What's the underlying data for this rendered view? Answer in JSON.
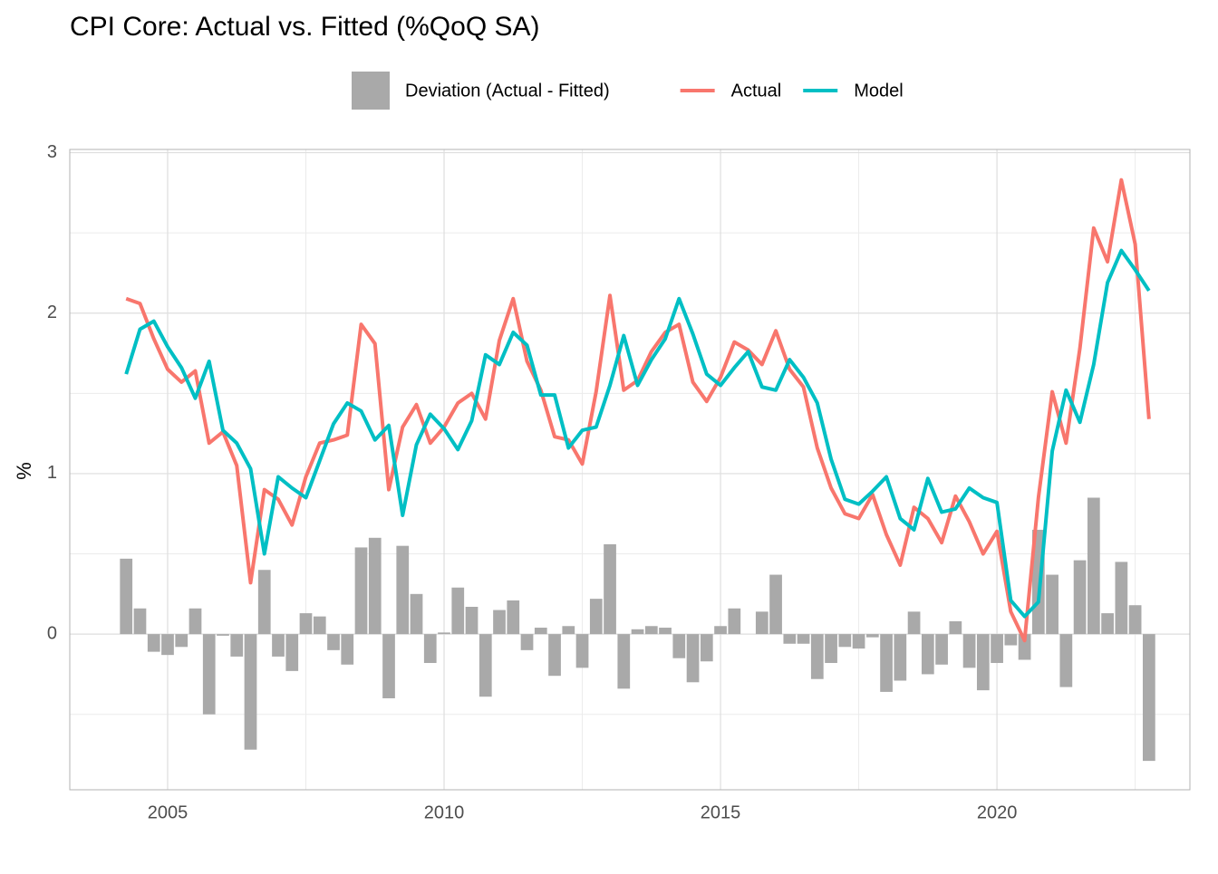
{
  "chart_data": {
    "type": "combo",
    "title": "CPI Core: Actual vs. Fitted (%QoQ SA)",
    "y_label": "%",
    "x": [
      2004.25,
      2004.5,
      2004.75,
      2005,
      2005.25,
      2005.5,
      2005.75,
      2006,
      2006.25,
      2006.5,
      2006.75,
      2007,
      2007.25,
      2007.5,
      2007.75,
      2008,
      2008.25,
      2008.5,
      2008.75,
      2009,
      2009.25,
      2009.5,
      2009.75,
      2010,
      2010.25,
      2010.5,
      2010.75,
      2011,
      2011.25,
      2011.5,
      2011.75,
      2012,
      2012.25,
      2012.5,
      2012.75,
      2013,
      2013.25,
      2013.5,
      2013.75,
      2014,
      2014.25,
      2014.5,
      2014.75,
      2015,
      2015.25,
      2015.5,
      2015.75,
      2016,
      2016.25,
      2016.5,
      2016.75,
      2017,
      2017.25,
      2017.5,
      2017.75,
      2018,
      2018.25,
      2018.5,
      2018.75,
      2019,
      2019.25,
      2019.5,
      2019.75,
      2020,
      2020.25,
      2020.5,
      2020.75,
      2021,
      2021.25,
      2021.5,
      2021.75,
      2022,
      2022.25,
      2022.5,
      2022.75
    ],
    "series": [
      {
        "name": "Deviation (Actual - Fitted)",
        "type": "bar",
        "color": "#a9a9a9",
        "values": [
          0.47,
          0.16,
          -0.11,
          -0.13,
          -0.08,
          0.16,
          -0.5,
          -0.01,
          -0.14,
          -0.72,
          0.4,
          -0.14,
          -0.23,
          0.13,
          0.11,
          -0.1,
          -0.19,
          0.54,
          0.6,
          -0.4,
          0.55,
          0.25,
          -0.18,
          0.01,
          0.29,
          0.17,
          -0.39,
          0.15,
          0.21,
          -0.1,
          0.04,
          -0.26,
          0.05,
          -0.21,
          0.22,
          0.56,
          -0.34,
          0.03,
          0.05,
          0.04,
          -0.15,
          -0.3,
          -0.17,
          0.05,
          0.16,
          0.0,
          0.14,
          0.37,
          -0.06,
          -0.06,
          -0.28,
          -0.18,
          -0.08,
          -0.09,
          -0.02,
          -0.36,
          -0.29,
          0.14,
          -0.25,
          -0.19,
          0.08,
          -0.21,
          -0.35,
          -0.18,
          -0.07,
          -0.16,
          0.65,
          0.37,
          -0.33,
          0.46,
          0.85,
          0.13,
          0.45,
          0.18,
          -0.79
        ]
      },
      {
        "name": "Actual",
        "type": "line",
        "color": "#f8766d",
        "values": [
          2.09,
          2.06,
          1.84,
          1.65,
          1.57,
          1.64,
          1.19,
          1.26,
          1.05,
          0.32,
          0.9,
          0.84,
          0.68,
          0.98,
          1.19,
          1.21,
          1.24,
          1.93,
          1.81,
          0.9,
          1.29,
          1.43,
          1.19,
          1.29,
          1.44,
          1.5,
          1.34,
          1.83,
          2.09,
          1.7,
          1.52,
          1.23,
          1.21,
          1.06,
          1.51,
          2.11,
          1.52,
          1.58,
          1.76,
          1.88,
          1.93,
          1.57,
          1.45,
          1.6,
          1.82,
          1.77,
          1.68,
          1.89,
          1.65,
          1.54,
          1.16,
          0.91,
          0.75,
          0.72,
          0.87,
          0.62,
          0.43,
          0.79,
          0.72,
          0.57,
          0.86,
          0.7,
          0.5,
          0.64,
          0.14,
          -0.04,
          0.85,
          1.51,
          1.19,
          1.78,
          2.53,
          2.32,
          2.83,
          2.43,
          1.34
        ]
      },
      {
        "name": "Model",
        "type": "line",
        "color": "#00bfc4",
        "values": [
          1.62,
          1.9,
          1.95,
          1.79,
          1.66,
          1.47,
          1.7,
          1.27,
          1.19,
          1.03,
          0.5,
          0.98,
          0.91,
          0.85,
          1.08,
          1.31,
          1.44,
          1.39,
          1.21,
          1.3,
          0.74,
          1.18,
          1.37,
          1.28,
          1.15,
          1.33,
          1.74,
          1.68,
          1.88,
          1.8,
          1.49,
          1.49,
          1.16,
          1.27,
          1.29,
          1.55,
          1.86,
          1.55,
          1.71,
          1.84,
          2.09,
          1.87,
          1.62,
          1.55,
          1.66,
          1.76,
          1.54,
          1.52,
          1.71,
          1.6,
          1.44,
          1.09,
          0.84,
          0.81,
          0.89,
          0.98,
          0.72,
          0.65,
          0.97,
          0.76,
          0.78,
          0.91,
          0.85,
          0.82,
          0.21,
          0.11,
          0.2,
          1.14,
          1.52,
          1.32,
          1.68,
          2.19,
          2.39,
          2.27,
          2.14
        ]
      }
    ],
    "xlim": [
      2003.23,
      2023.49
    ],
    "ylim": [
      -0.97,
      3.02
    ],
    "xticks": [
      2005,
      2010,
      2015,
      2020
    ],
    "yticks": [
      0,
      1,
      2,
      3
    ],
    "xminorticks": [
      2007.5,
      2012.5,
      2017.5,
      2022.5
    ],
    "yminorticks": [
      -0.5,
      0.5,
      1.5,
      2.5
    ],
    "grid": true,
    "legend": "top"
  }
}
